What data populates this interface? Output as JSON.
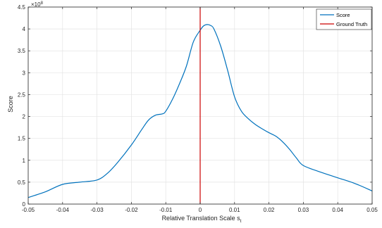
{
  "chart_data": {
    "type": "line",
    "title": "",
    "xlabel": "Relative Translation Scale s",
    "xlabel_subscript": "t",
    "ylabel": "Score",
    "y_exponent_label": "×10",
    "y_exponent": "8",
    "xlim": [
      -0.05,
      0.05
    ],
    "ylim": [
      0,
      4.5
    ],
    "x_ticks": [
      -0.05,
      -0.04,
      -0.03,
      -0.02,
      -0.01,
      0,
      0.01,
      0.02,
      0.03,
      0.04,
      0.05
    ],
    "x_tick_labels": [
      "-0.05",
      "-0.04",
      "-0.03",
      "-0.02",
      "-0.01",
      "0",
      "0.01",
      "0.02",
      "0.03",
      "0.04",
      "0.05"
    ],
    "y_ticks": [
      0,
      0.5,
      1,
      1.5,
      2,
      2.5,
      3,
      3.5,
      4,
      4.5
    ],
    "y_tick_labels": [
      "0",
      "0.5",
      "1",
      "1.5",
      "2",
      "2.5",
      "3",
      "3.5",
      "4",
      "4.5"
    ],
    "grid": true,
    "legend_position": "top-right",
    "series": [
      {
        "name": "Score",
        "color": "#0072BD",
        "x": [
          -0.05,
          -0.045,
          -0.04,
          -0.035,
          -0.03,
          -0.027,
          -0.024,
          -0.02,
          -0.017,
          -0.015,
          -0.013,
          -0.011,
          -0.01,
          -0.008,
          -0.006,
          -0.004,
          -0.002,
          0,
          0.001,
          0.002,
          0.003,
          0.004,
          0.006,
          0.008,
          0.01,
          0.012,
          0.014,
          0.016,
          0.018,
          0.02,
          0.022,
          0.024,
          0.026,
          0.028,
          0.03,
          0.035,
          0.04,
          0.045,
          0.05
        ],
        "y": [
          0.15,
          0.28,
          0.45,
          0.5,
          0.55,
          0.7,
          0.95,
          1.35,
          1.7,
          1.92,
          2.03,
          2.06,
          2.12,
          2.4,
          2.75,
          3.15,
          3.7,
          3.97,
          4.07,
          4.1,
          4.08,
          4.0,
          3.6,
          3.05,
          2.45,
          2.12,
          1.95,
          1.82,
          1.72,
          1.63,
          1.55,
          1.42,
          1.25,
          1.05,
          0.88,
          0.73,
          0.6,
          0.47,
          0.3
        ]
      },
      {
        "name": "Ground Truth",
        "color": "#cc0000",
        "x": [
          0,
          0
        ],
        "y": [
          0,
          4.5
        ]
      }
    ]
  }
}
